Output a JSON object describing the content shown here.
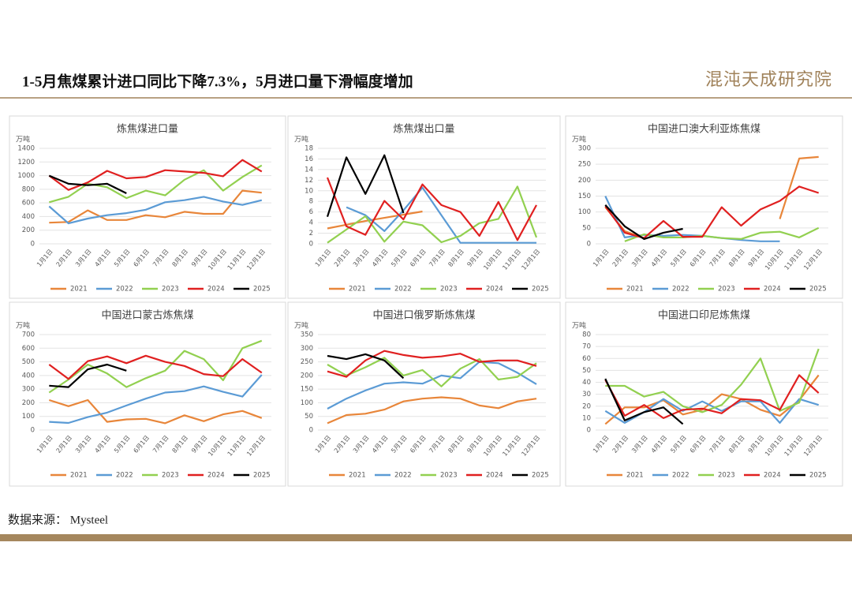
{
  "title": "1-5月焦煤累计进口同比下降7.3%，5月进口量下滑幅度增加",
  "logo": "混沌天成研究院",
  "source": "数据来源： Mysteel",
  "chart_data": [
    {
      "type": "line",
      "title": "炼焦煤进口量",
      "unit": "万吨",
      "categories": [
        "1月1日",
        "2月1日",
        "3月1日",
        "4月1日",
        "5月1日",
        "6月1日",
        "7月1日",
        "8月1日",
        "9月1日",
        "10月1日",
        "11月1日",
        "12月1日"
      ],
      "ylim": [
        0,
        1400
      ],
      "yticks": [
        0,
        200,
        400,
        600,
        800,
        1000,
        1200,
        1400
      ],
      "grid": true,
      "series": [
        {
          "name": "2021",
          "color": "#e8863a",
          "values": [
            310,
            320,
            490,
            350,
            350,
            420,
            390,
            470,
            440,
            440,
            780,
            750
          ]
        },
        {
          "name": "2022",
          "color": "#5b9bd5",
          "values": [
            550,
            300,
            370,
            420,
            450,
            500,
            610,
            640,
            690,
            620,
            570,
            640
          ]
        },
        {
          "name": "2023",
          "color": "#92d050",
          "values": [
            610,
            690,
            880,
            830,
            670,
            780,
            710,
            940,
            1080,
            780,
            980,
            1150
          ]
        },
        {
          "name": "2024",
          "color": "#e02020",
          "values": [
            1000,
            790,
            900,
            1070,
            960,
            980,
            1080,
            1060,
            1040,
            990,
            1230,
            1060
          ]
        },
        {
          "name": "2025",
          "color": "#000000",
          "values": [
            1000,
            880,
            860,
            880,
            740,
            null,
            null,
            null,
            null,
            null,
            null,
            null
          ]
        }
      ]
    },
    {
      "type": "line",
      "title": "炼焦煤出口量",
      "unit": "万吨",
      "categories": [
        "1月1日",
        "2月1日",
        "3月1日",
        "4月1日",
        "5月1日",
        "6月1日",
        "7月1日",
        "8月1日",
        "9月1日",
        "10月1日",
        "11月1日",
        "12月1日"
      ],
      "ylim": [
        0,
        18
      ],
      "yticks": [
        0,
        2,
        4,
        6,
        8,
        10,
        12,
        14,
        16,
        18
      ],
      "grid": true,
      "series": [
        {
          "name": "2021",
          "color": "#e8863a",
          "values": [
            2.9,
            3.6,
            4.3,
            4.9,
            5.5,
            6.1,
            null,
            null,
            null,
            null,
            null,
            null
          ]
        },
        {
          "name": "2022",
          "color": "#5b9bd5",
          "values": [
            null,
            6.9,
            5.4,
            2.4,
            6.3,
            10.6,
            5.4,
            0.2,
            0.2,
            0.2,
            0.2,
            0.2
          ]
        },
        {
          "name": "2023",
          "color": "#92d050",
          "values": [
            0.2,
            2.7,
            5.2,
            0.4,
            4.2,
            3.5,
            0.3,
            1.5,
            3.9,
            4.7,
            10.8,
            1.2
          ]
        },
        {
          "name": "2024",
          "color": "#e02020",
          "values": [
            12.5,
            3.3,
            1.7,
            8.1,
            4.6,
            11.2,
            7.3,
            6.0,
            1.5,
            7.9,
            0.7,
            7.3
          ]
        },
        {
          "name": "2025",
          "color": "#000000",
          "values": [
            5.1,
            16.3,
            9.4,
            16.7,
            5.8,
            null,
            null,
            null,
            null,
            null,
            null,
            null
          ]
        }
      ]
    },
    {
      "type": "line",
      "title": "中国进口澳大利亚炼焦煤",
      "unit": "万吨",
      "categories": [
        "1月1日",
        "2月1日",
        "3月1日",
        "4月1日",
        "5月1日",
        "6月1日",
        "7月1日",
        "8月1日",
        "9月1日",
        "10月1日",
        "11月1日",
        "12月1日"
      ],
      "ylim": [
        0,
        300
      ],
      "yticks": [
        0,
        50,
        100,
        150,
        200,
        250,
        300
      ],
      "grid": true,
      "series": [
        {
          "name": "2021",
          "color": "#e8863a",
          "values": [
            115,
            40,
            18,
            null,
            null,
            null,
            null,
            null,
            null,
            78,
            268,
            273
          ]
        },
        {
          "name": "2022",
          "color": "#5b9bd5",
          "values": [
            150,
            20,
            28,
            25,
            28,
            25,
            18,
            12,
            8,
            8,
            null,
            null
          ]
        },
        {
          "name": "2023",
          "color": "#92d050",
          "values": [
            null,
            8,
            30,
            20,
            20,
            25,
            18,
            15,
            35,
            38,
            20,
            50
          ]
        },
        {
          "name": "2024",
          "color": "#e02020",
          "values": [
            118,
            35,
            18,
            72,
            22,
            22,
            115,
            57,
            108,
            135,
            180,
            160
          ]
        },
        {
          "name": "2025",
          "color": "#000000",
          "values": [
            122,
            55,
            15,
            35,
            47,
            null,
            null,
            null,
            null,
            null,
            null,
            null
          ]
        }
      ]
    },
    {
      "type": "line",
      "title": "中国进口蒙古炼焦煤",
      "unit": "万吨",
      "categories": [
        "1月1日",
        "2月1日",
        "3月1日",
        "4月1日",
        "5月1日",
        "6月1日",
        "7月1日",
        "8月1日",
        "9月1日",
        "10月1日",
        "11月1日",
        "12月1日"
      ],
      "ylim": [
        0,
        700
      ],
      "yticks": [
        0,
        100,
        200,
        300,
        400,
        500,
        600,
        700
      ],
      "grid": true,
      "series": [
        {
          "name": "2021",
          "color": "#e8863a",
          "values": [
            220,
            175,
            220,
            60,
            78,
            82,
            50,
            108,
            65,
            115,
            140,
            88
          ]
        },
        {
          "name": "2022",
          "color": "#5b9bd5",
          "values": [
            60,
            52,
            95,
            128,
            180,
            230,
            275,
            285,
            320,
            280,
            245,
            405
          ]
        },
        {
          "name": "2023",
          "color": "#92d050",
          "values": [
            275,
            370,
            480,
            415,
            315,
            380,
            435,
            580,
            520,
            365,
            600,
            655
          ]
        },
        {
          "name": "2024",
          "color": "#e02020",
          "values": [
            480,
            375,
            505,
            540,
            490,
            545,
            500,
            470,
            410,
            395,
            520,
            420
          ]
        },
        {
          "name": "2025",
          "color": "#000000",
          "values": [
            325,
            315,
            445,
            480,
            435,
            null,
            null,
            null,
            null,
            null,
            null,
            null
          ]
        }
      ]
    },
    {
      "type": "line",
      "title": "中国进口俄罗斯炼焦煤",
      "unit": "万吨",
      "categories": [
        "1月1日",
        "2月1日",
        "3月1日",
        "4月1日",
        "5月1日",
        "6月1日",
        "7月1日",
        "8月1日",
        "9月1日",
        "10月1日",
        "11月1日",
        "12月1日"
      ],
      "ylim": [
        0,
        350
      ],
      "yticks": [
        0,
        50,
        100,
        150,
        200,
        250,
        300,
        350
      ],
      "grid": true,
      "series": [
        {
          "name": "2021",
          "color": "#e8863a",
          "values": [
            25,
            55,
            60,
            75,
            105,
            115,
            120,
            115,
            90,
            80,
            105,
            115
          ]
        },
        {
          "name": "2022",
          "color": "#5b9bd5",
          "values": [
            78,
            115,
            145,
            170,
            175,
            170,
            200,
            190,
            250,
            245,
            210,
            168
          ]
        },
        {
          "name": "2023",
          "color": "#92d050",
          "values": [
            240,
            200,
            230,
            265,
            200,
            220,
            160,
            225,
            260,
            185,
            195,
            245
          ]
        },
        {
          "name": "2024",
          "color": "#e02020",
          "values": [
            215,
            195,
            255,
            290,
            275,
            265,
            270,
            280,
            250,
            255,
            255,
            235
          ]
        },
        {
          "name": "2025",
          "color": "#000000",
          "values": [
            272,
            260,
            278,
            255,
            190,
            null,
            null,
            null,
            null,
            null,
            null,
            null
          ]
        }
      ]
    },
    {
      "type": "line",
      "title": "中国进口印尼炼焦煤",
      "unit": "万吨",
      "categories": [
        "1月1日",
        "2月1日",
        "3月1日",
        "4月1日",
        "5月1日",
        "6月1日",
        "7月1日",
        "8月1日",
        "9月1日",
        "10月1日",
        "11月1日",
        "12月1日"
      ],
      "ylim": [
        0,
        80
      ],
      "yticks": [
        0,
        10,
        20,
        30,
        40,
        50,
        60,
        70,
        80
      ],
      "grid": true,
      "series": [
        {
          "name": "2021",
          "color": "#e8863a",
          "values": [
            5,
            19,
            19,
            25,
            13,
            17,
            30,
            26,
            17,
            12,
            25,
            46
          ]
        },
        {
          "name": "2022",
          "color": "#5b9bd5",
          "values": [
            16,
            6,
            15,
            26,
            16,
            24,
            16,
            24,
            24,
            6,
            26,
            21
          ]
        },
        {
          "name": "2023",
          "color": "#92d050",
          "values": [
            37,
            37,
            28,
            32,
            20,
            15,
            21,
            38,
            60,
            16,
            23,
            68
          ]
        },
        {
          "name": "2024",
          "color": "#e02020",
          "values": [
            42,
            12,
            21,
            10,
            17,
            18,
            14,
            26,
            25,
            17,
            46,
            31
          ]
        },
        {
          "name": "2025",
          "color": "#000000",
          "values": [
            43,
            8,
            15,
            19,
            5,
            null,
            null,
            null,
            null,
            null,
            null,
            null
          ]
        }
      ]
    }
  ]
}
